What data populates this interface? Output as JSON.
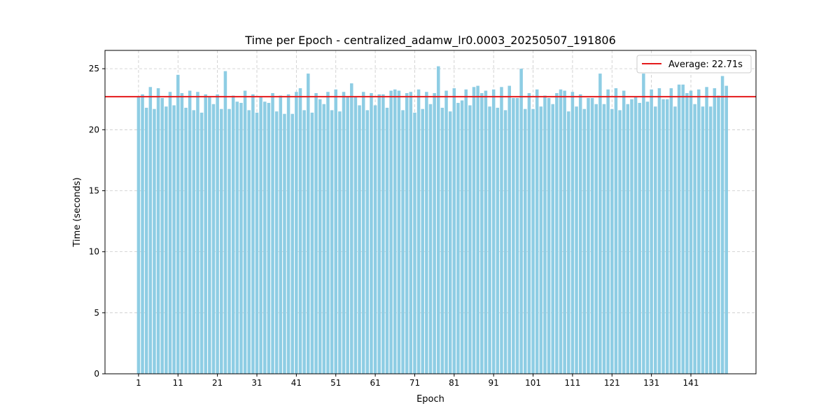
{
  "chart_data": {
    "type": "bar",
    "title": "Time per Epoch - centralized_adamw_lr0.0003_20250507_191806",
    "xlabel": "Epoch",
    "ylabel": "Time (seconds)",
    "ylim": [
      0,
      26.5
    ],
    "xlim": [
      -7.5,
      157.5
    ],
    "yticks": [
      0,
      5,
      10,
      15,
      20,
      25
    ],
    "xticks": [
      1,
      11,
      21,
      31,
      41,
      51,
      61,
      71,
      81,
      91,
      101,
      111,
      121,
      131,
      141
    ],
    "grid": true,
    "legend_position": "top-right",
    "bar_color": "#8ecde4",
    "average": {
      "label": "Average: 22.71s",
      "value": 22.71,
      "color": "#e41a1c"
    },
    "epochs": [
      1,
      2,
      3,
      4,
      5,
      6,
      7,
      8,
      9,
      10,
      11,
      12,
      13,
      14,
      15,
      16,
      17,
      18,
      19,
      20,
      21,
      22,
      23,
      24,
      25,
      26,
      27,
      28,
      29,
      30,
      31,
      32,
      33,
      34,
      35,
      36,
      37,
      38,
      39,
      40,
      41,
      42,
      43,
      44,
      45,
      46,
      47,
      48,
      49,
      50,
      51,
      52,
      53,
      54,
      55,
      56,
      57,
      58,
      59,
      60,
      61,
      62,
      63,
      64,
      65,
      66,
      67,
      68,
      69,
      70,
      71,
      72,
      73,
      74,
      75,
      76,
      77,
      78,
      79,
      80,
      81,
      82,
      83,
      84,
      85,
      86,
      87,
      88,
      89,
      90,
      91,
      92,
      93,
      94,
      95,
      96,
      97,
      98,
      99,
      100,
      101,
      102,
      103,
      104,
      105,
      106,
      107,
      108,
      109,
      110,
      111,
      112,
      113,
      114,
      115,
      116,
      117,
      118,
      119,
      120,
      121,
      122,
      123,
      124,
      125,
      126,
      127,
      128,
      129,
      130,
      131,
      132,
      133,
      134,
      135,
      136,
      137,
      138,
      139,
      140,
      141,
      142,
      143,
      144,
      145,
      146,
      147,
      148,
      149,
      150
    ],
    "values": [
      22.7,
      22.9,
      21.8,
      23.5,
      21.7,
      23.4,
      22.6,
      21.9,
      23.1,
      22,
      24.5,
      23,
      21.8,
      23.2,
      21.6,
      23.1,
      21.4,
      22.9,
      22.7,
      22.1,
      22.9,
      21.7,
      24.8,
      21.7,
      22.8,
      22.3,
      22.2,
      23.2,
      21.6,
      22.9,
      21.4,
      22.7,
      22.3,
      22.2,
      23,
      21.5,
      22.8,
      21.3,
      22.9,
      21.3,
      23.1,
      23.4,
      21.6,
      24.6,
      21.4,
      23,
      22.5,
      22.1,
      23.1,
      21.6,
      23.3,
      21.5,
      23.1,
      22.7,
      23.8,
      22.7,
      22,
      23.1,
      21.6,
      23,
      22,
      22.9,
      22.9,
      21.8,
      23.2,
      23.3,
      23.2,
      21.6,
      23,
      23.1,
      21.4,
      23.3,
      21.7,
      23.1,
      22.1,
      23,
      25.2,
      21.8,
      23.2,
      21.5,
      23.4,
      22.2,
      22.4,
      23.3,
      22,
      23.5,
      23.6,
      23,
      23.2,
      21.9,
      23.3,
      21.8,
      23.5,
      21.6,
      23.6,
      22.6,
      22.6,
      25,
      21.7,
      23,
      21.7,
      23.3,
      21.9,
      22.8,
      22.6,
      22.1,
      23,
      23.3,
      23.2,
      21.5,
      23.1,
      21.9,
      22.9,
      21.7,
      22.6,
      22.6,
      22.1,
      24.6,
      22.1,
      23.3,
      21.7,
      23.4,
      21.6,
      23.2,
      22.1,
      22.5,
      22.7,
      22.2,
      24.6,
      22.3,
      23.3,
      21.9,
      23.4,
      22.5,
      22.5,
      23.4,
      21.9,
      23.7,
      23.7,
      23,
      23.2,
      22.1,
      23.3,
      21.9,
      23.5,
      21.9,
      23.4,
      22.8,
      24.4,
      23.6
    ]
  }
}
